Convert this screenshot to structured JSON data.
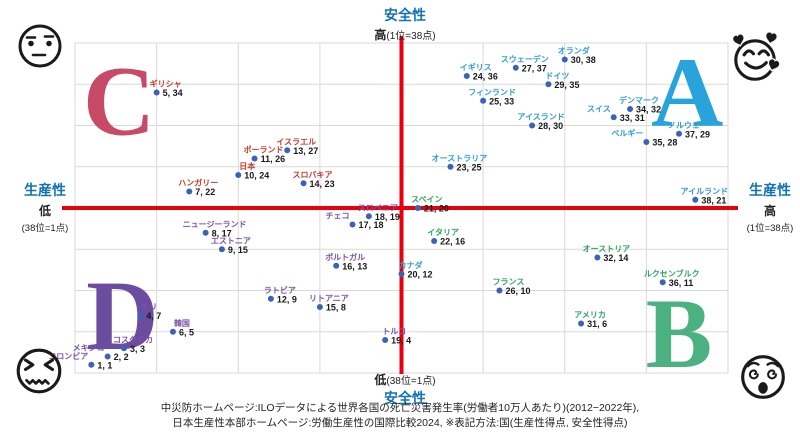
{
  "axes": {
    "top": {
      "title": "安全性",
      "level": "高",
      "scale": "(1位=38点)"
    },
    "bottom": {
      "title": "安全性",
      "level": "低",
      "scale": "(38位=1点)"
    },
    "left": {
      "title": "生産性",
      "level": "低",
      "scale": "(38位=1点)"
    },
    "right": {
      "title": "生産性",
      "level": "高",
      "scale": "(1位=38点)"
    }
  },
  "footer": {
    "line1": "中災防ホームページ:ILOデータによる世界各国の死亡災害発生率(労働者10万人あたり)(2012−2022年),",
    "line2": "日本生産性本部ホームページ:労働生産性の国際比較2024, ※表記方法:国(生産性得点, 安全性得点)"
  },
  "colors": {
    "axis_title": "#1272B6",
    "cross_axis": "#E8000D",
    "grid": "#D9D9D9",
    "dot": "#3A63B8",
    "value_text": "#1A1A1A",
    "face": "#1A1A1A"
  },
  "icons": {
    "top_left": "neutral-face",
    "top_right": "smiling-face-with-hearts",
    "bottom_left": "confounded-face",
    "bottom_right": "dizzy-face"
  },
  "chart_data": {
    "type": "scatter",
    "xlabel": "生産性",
    "ylabel": "安全性",
    "xlim": [
      0,
      40
    ],
    "ylim": [
      0,
      40
    ],
    "grid_step": 5,
    "grid": true,
    "axis_cross": [
      20,
      20
    ],
    "point_format": "国(生産性得点, 安全性得点)",
    "quadrant_letters": [
      {
        "letter": "A",
        "color": "#29A3DC",
        "x": 37.5,
        "y": 34.0
      },
      {
        "letter": "B",
        "color": "#4CB180",
        "x": 37.0,
        "y": 4.8
      },
      {
        "letter": "C",
        "color": "#C74A67",
        "x": 2.7,
        "y": 33.0
      },
      {
        "letter": "D",
        "color": "#6B4C9F",
        "x": 2.9,
        "y": 7.0
      }
    ],
    "groups": [
      {
        "id": "A",
        "label_color": "#2E9BD6",
        "points": [
          {
            "name": "オランダ",
            "x": 30,
            "y": 38
          },
          {
            "name": "スウェーデン",
            "x": 27,
            "y": 37
          },
          {
            "name": "イギリス",
            "x": 24,
            "y": 36
          },
          {
            "name": "ドイツ",
            "x": 29,
            "y": 35
          },
          {
            "name": "フィンランド",
            "x": 25,
            "y": 33
          },
          {
            "name": "デンマーク",
            "x": 34,
            "y": 32
          },
          {
            "name": "スイス",
            "x": 33,
            "y": 31,
            "align": "left"
          },
          {
            "name": "アイスランド",
            "x": 28,
            "y": 30
          },
          {
            "name": "ノルウェー",
            "x": 37,
            "y": 29
          },
          {
            "name": "ベルギー",
            "x": 35,
            "y": 28,
            "align": "left"
          },
          {
            "name": "オーストラリア",
            "x": 23,
            "y": 25
          },
          {
            "name": "アイルランド",
            "x": 38,
            "y": 21
          }
        ]
      },
      {
        "id": "B",
        "label_color": "#2EA45C",
        "points": [
          {
            "name": "スペイン",
            "x": 21,
            "y": 20
          },
          {
            "name": "イタリア",
            "x": 22,
            "y": 16
          },
          {
            "name": "オーストリア",
            "x": 32,
            "y": 14
          },
          {
            "name": "ルクセンブルク",
            "x": 36,
            "y": 11
          },
          {
            "name": "フランス",
            "x": 26,
            "y": 10
          },
          {
            "name": "アメリカ",
            "x": 31,
            "y": 6
          }
        ]
      },
      {
        "id": "C",
        "label_color": "#C23B2A",
        "points": [
          {
            "name": "ギリシャ",
            "x": 5,
            "y": 34
          },
          {
            "name": "イスラエル",
            "x": 13,
            "y": 27
          },
          {
            "name": "ポーランド",
            "x": 11,
            "y": 26
          },
          {
            "name": "日本",
            "x": 10,
            "y": 24
          },
          {
            "name": "スロバキア",
            "x": 14,
            "y": 23
          },
          {
            "name": "ハンガリー",
            "x": 7,
            "y": 22
          }
        ]
      },
      {
        "id": "D",
        "label_color": "#7A52A8",
        "points": [
          {
            "name": "スロベニア",
            "x": 18,
            "y": 19
          },
          {
            "name": "チェコ",
            "x": 17,
            "y": 18,
            "align": "left"
          },
          {
            "name": "ニュージーランド",
            "x": 8,
            "y": 17
          },
          {
            "name": "エストニア",
            "x": 9,
            "y": 15
          },
          {
            "name": "ポルトガル",
            "x": 16,
            "y": 13
          },
          {
            "name": "ラトビア",
            "x": 12,
            "y": 9
          },
          {
            "name": "リトアニア",
            "x": 15,
            "y": 8
          },
          {
            "name": "チリ",
            "x": 4,
            "y": 7
          },
          {
            "name": "韓国",
            "x": 6,
            "y": 5
          },
          {
            "name": "トルコ",
            "x": 19,
            "y": 4
          },
          {
            "name": "コスタリカ",
            "x": 3,
            "y": 3
          },
          {
            "name": "メキシコ",
            "x": 2,
            "y": 2,
            "align": "left"
          },
          {
            "name": "コロンビア",
            "x": 1,
            "y": 1,
            "align": "left"
          }
        ]
      },
      {
        "id": "boundary",
        "label_color": "#2E9BD6",
        "points": [
          {
            "name": "カナダ",
            "x": 20,
            "y": 12
          }
        ]
      }
    ]
  }
}
